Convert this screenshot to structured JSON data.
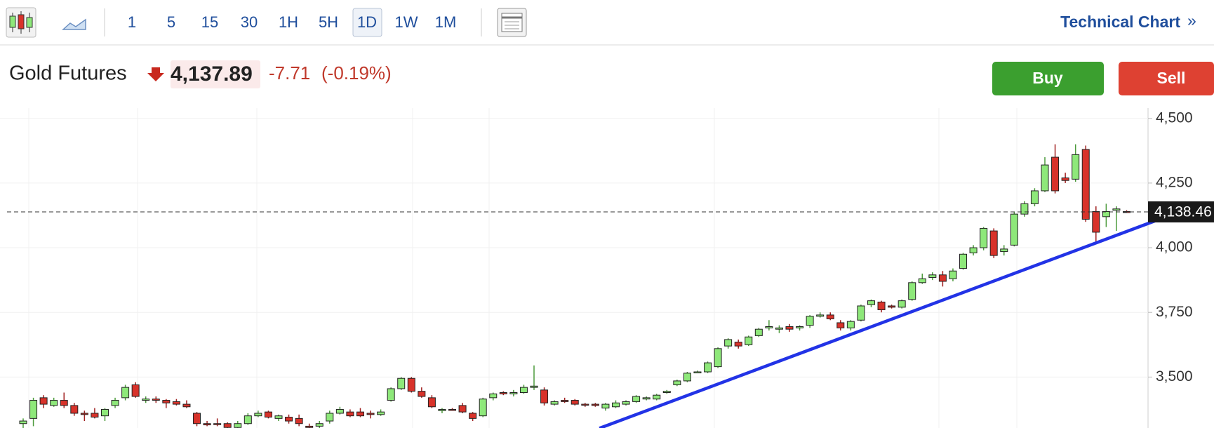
{
  "toolbar": {
    "intervals": [
      "1",
      "5",
      "15",
      "30",
      "1H",
      "5H",
      "1D",
      "1W",
      "1M"
    ],
    "active_index": 6,
    "technical_chart": "Technical Chart",
    "chevron": "»"
  },
  "quote": {
    "name": "Gold Futures",
    "price": "4,137.89",
    "change": "-7.71",
    "change_percent": "(-0.19%)"
  },
  "actions": {
    "buy": "Buy",
    "sell": "Sell"
  },
  "chart_data": {
    "type": "candlestick",
    "up_color": "#8ee87a",
    "down_color": "#d8322a",
    "grid": true,
    "ylim": [
      3303,
      4540
    ],
    "yticks": [
      {
        "value": 4500,
        "label": "4,500"
      },
      {
        "value": 4250,
        "label": "4,250"
      },
      {
        "value": 4000,
        "label": "4,000"
      },
      {
        "value": 3750,
        "label": "3,750"
      },
      {
        "value": 3500,
        "label": "3,500"
      }
    ],
    "last_price": {
      "value": 4138.46,
      "label": "4,138.46"
    },
    "trendline": {
      "color": "#2233e6",
      "from": [
        56.4,
        3302
      ],
      "to": [
        112.9,
        4135
      ]
    },
    "ohlc": [
      [
        3320,
        3340,
        3300,
        3330
      ],
      [
        3340,
        3420,
        3310,
        3410
      ],
      [
        3420,
        3430,
        3380,
        3395
      ],
      [
        3390,
        3420,
        3385,
        3410
      ],
      [
        3410,
        3440,
        3380,
        3390
      ],
      [
        3390,
        3400,
        3350,
        3360
      ],
      [
        3360,
        3370,
        3330,
        3355
      ],
      [
        3360,
        3380,
        3340,
        3345
      ],
      [
        3350,
        3380,
        3330,
        3375
      ],
      [
        3390,
        3420,
        3380,
        3410
      ],
      [
        3420,
        3470,
        3410,
        3460
      ],
      [
        3470,
        3480,
        3420,
        3425
      ],
      [
        3410,
        3425,
        3400,
        3415
      ],
      [
        3415,
        3425,
        3400,
        3410
      ],
      [
        3410,
        3415,
        3380,
        3400
      ],
      [
        3405,
        3415,
        3390,
        3395
      ],
      [
        3395,
        3410,
        3380,
        3385
      ],
      [
        3360,
        3365,
        3310,
        3320
      ],
      [
        3320,
        3330,
        3310,
        3315
      ],
      [
        3320,
        3340,
        3310,
        3318
      ],
      [
        3320,
        3325,
        3300,
        3305
      ],
      [
        3305,
        3330,
        3300,
        3320
      ],
      [
        3320,
        3360,
        3315,
        3350
      ],
      [
        3350,
        3370,
        3345,
        3360
      ],
      [
        3365,
        3370,
        3340,
        3345
      ],
      [
        3340,
        3355,
        3330,
        3350
      ],
      [
        3345,
        3355,
        3320,
        3330
      ],
      [
        3340,
        3355,
        3310,
        3320
      ],
      [
        3310,
        3320,
        3300,
        3305
      ],
      [
        3310,
        3330,
        3300,
        3320
      ],
      [
        3330,
        3370,
        3320,
        3360
      ],
      [
        3360,
        3385,
        3355,
        3375
      ],
      [
        3365,
        3375,
        3345,
        3350
      ],
      [
        3365,
        3380,
        3345,
        3350
      ],
      [
        3360,
        3370,
        3340,
        3355
      ],
      [
        3355,
        3375,
        3350,
        3365
      ],
      [
        3410,
        3460,
        3405,
        3455
      ],
      [
        3455,
        3500,
        3450,
        3495
      ],
      [
        3495,
        3500,
        3440,
        3445
      ],
      [
        3445,
        3460,
        3420,
        3425
      ],
      [
        3420,
        3430,
        3380,
        3385
      ],
      [
        3370,
        3380,
        3360,
        3375
      ],
      [
        3375,
        3380,
        3370,
        3372
      ],
      [
        3390,
        3400,
        3360,
        3365
      ],
      [
        3360,
        3365,
        3330,
        3340
      ],
      [
        3350,
        3420,
        3345,
        3415
      ],
      [
        3420,
        3440,
        3410,
        3435
      ],
      [
        3440,
        3445,
        3430,
        3435
      ],
      [
        3435,
        3450,
        3425,
        3440
      ],
      [
        3440,
        3470,
        3435,
        3460
      ],
      [
        3460,
        3545,
        3450,
        3465
      ],
      [
        3450,
        3460,
        3390,
        3400
      ],
      [
        3395,
        3410,
        3390,
        3405
      ],
      [
        3410,
        3420,
        3400,
        3405
      ],
      [
        3410,
        3415,
        3390,
        3395
      ],
      [
        3395,
        3400,
        3385,
        3392
      ],
      [
        3395,
        3400,
        3385,
        3390
      ],
      [
        3380,
        3400,
        3370,
        3395
      ],
      [
        3385,
        3410,
        3380,
        3400
      ],
      [
        3395,
        3410,
        3390,
        3405
      ],
      [
        3405,
        3430,
        3400,
        3425
      ],
      [
        3415,
        3425,
        3410,
        3420
      ],
      [
        3415,
        3435,
        3410,
        3430
      ],
      [
        3440,
        3450,
        3435,
        3445
      ],
      [
        3470,
        3490,
        3465,
        3485
      ],
      [
        3485,
        3520,
        3480,
        3515
      ],
      [
        3520,
        3525,
        3515,
        3520
      ],
      [
        3520,
        3560,
        3515,
        3555
      ],
      [
        3540,
        3615,
        3535,
        3610
      ],
      [
        3620,
        3650,
        3610,
        3645
      ],
      [
        3635,
        3645,
        3610,
        3620
      ],
      [
        3625,
        3660,
        3620,
        3655
      ],
      [
        3660,
        3690,
        3655,
        3685
      ],
      [
        3690,
        3720,
        3680,
        3695
      ],
      [
        3685,
        3700,
        3670,
        3690
      ],
      [
        3695,
        3705,
        3675,
        3685
      ],
      [
        3690,
        3700,
        3680,
        3695
      ],
      [
        3700,
        3740,
        3690,
        3735
      ],
      [
        3735,
        3750,
        3730,
        3740
      ],
      [
        3740,
        3750,
        3720,
        3725
      ],
      [
        3710,
        3720,
        3680,
        3690
      ],
      [
        3690,
        3720,
        3680,
        3715
      ],
      [
        3720,
        3780,
        3715,
        3775
      ],
      [
        3780,
        3800,
        3770,
        3795
      ],
      [
        3790,
        3795,
        3750,
        3760
      ],
      [
        3775,
        3780,
        3765,
        3770
      ],
      [
        3770,
        3800,
        3765,
        3795
      ],
      [
        3800,
        3870,
        3795,
        3865
      ],
      [
        3865,
        3900,
        3860,
        3880
      ],
      [
        3885,
        3905,
        3875,
        3895
      ],
      [
        3895,
        3910,
        3850,
        3870
      ],
      [
        3880,
        3920,
        3870,
        3910
      ],
      [
        3920,
        3980,
        3915,
        3975
      ],
      [
        3980,
        4010,
        3970,
        4000
      ],
      [
        4000,
        4080,
        3990,
        4075
      ],
      [
        4065,
        4075,
        3960,
        3970
      ],
      [
        3985,
        4010,
        3970,
        3995
      ],
      [
        4010,
        4140,
        4005,
        4130
      ],
      [
        4130,
        4180,
        4120,
        4170
      ],
      [
        4170,
        4230,
        4160,
        4220
      ],
      [
        4220,
        4350,
        4215,
        4320
      ],
      [
        4350,
        4400,
        4210,
        4220
      ],
      [
        4270,
        4290,
        4250,
        4260
      ],
      [
        4265,
        4400,
        4255,
        4360
      ],
      [
        4380,
        4395,
        4100,
        4110
      ],
      [
        4140,
        4160,
        4020,
        4060
      ],
      [
        4120,
        4170,
        4080,
        4140
      ],
      [
        4145,
        4160,
        4065,
        4150
      ],
      [
        4140,
        4145,
        4135,
        4138
      ]
    ]
  }
}
